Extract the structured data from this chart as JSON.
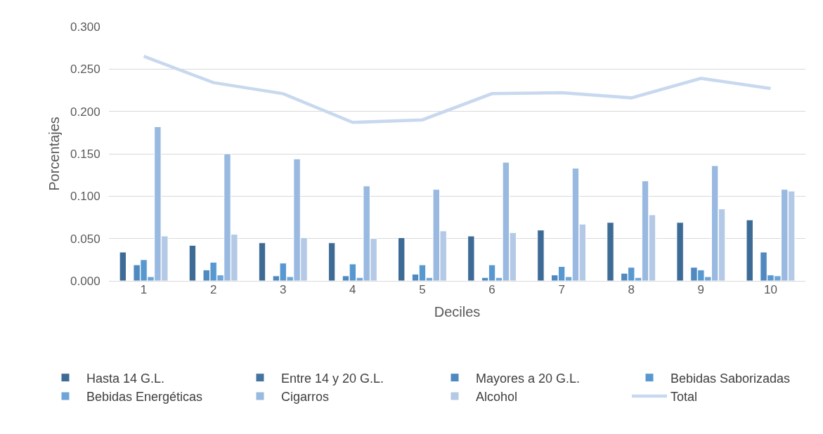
{
  "chart_data": {
    "type": "bar",
    "xlabel": "Deciles",
    "ylabel": "Porcentajes",
    "categories": [
      "1",
      "2",
      "3",
      "4",
      "5",
      "6",
      "7",
      "8",
      "9",
      "10"
    ],
    "series": [
      {
        "name": "Hasta 14 G.L.",
        "color": "#3e6b96",
        "values": [
          0.034,
          0.042,
          0.045,
          0.045,
          0.051,
          0.053,
          0.06,
          0.069,
          0.069,
          0.072
        ]
      },
      {
        "name": "Entre 14 y 20 G.L.",
        "color": "#44749e",
        "values": [
          null,
          null,
          null,
          null,
          null,
          null,
          null,
          null,
          null,
          null
        ]
      },
      {
        "name": "Mayores a 20 G.L.",
        "color": "#4f89bf",
        "values": [
          0.019,
          0.013,
          0.006,
          0.006,
          0.008,
          0.004,
          0.007,
          0.009,
          0.016,
          0.034
        ]
      },
      {
        "name": "Bebidas Saborizadas",
        "color": "#5898d0",
        "values": [
          0.025,
          0.022,
          0.021,
          0.02,
          0.019,
          0.019,
          0.017,
          0.016,
          0.013,
          0.007
        ]
      },
      {
        "name": "Bebidas Energéticas",
        "color": "#6da5d9",
        "values": [
          0.005,
          0.007,
          0.005,
          0.004,
          0.004,
          0.004,
          0.005,
          0.004,
          0.005,
          0.006
        ]
      },
      {
        "name": "Cigarros",
        "color": "#99b9e0",
        "values": [
          0.182,
          0.15,
          0.144,
          0.112,
          0.108,
          0.14,
          0.133,
          0.118,
          0.136,
          0.108
        ]
      },
      {
        "name": "Alcohol",
        "color": "#b4c9e5",
        "values": [
          0.053,
          0.055,
          0.051,
          0.05,
          0.059,
          0.057,
          0.067,
          0.078,
          0.085,
          0.106
        ]
      },
      {
        "name": "Total",
        "type": "line",
        "color": "#c8d8ee",
        "values": [
          0.265,
          0.234,
          0.221,
          0.187,
          0.19,
          0.221,
          0.222,
          0.216,
          0.239,
          0.227
        ]
      }
    ],
    "ylim": [
      0,
      0.3
    ],
    "yticks": [
      {
        "value": 0,
        "label": "0.000"
      },
      {
        "value": 0.05,
        "label": "0.050"
      },
      {
        "value": 0.1,
        "label": "0.100"
      },
      {
        "value": 0.15,
        "label": "0.150"
      },
      {
        "value": 0.2,
        "label": "0.200"
      },
      {
        "value": 0.25,
        "label": "0.250"
      },
      {
        "value": 0.3,
        "label": "0.300"
      }
    ],
    "grid": "y",
    "legend": "bottom",
    "marker": "none",
    "line_style": "solid"
  }
}
